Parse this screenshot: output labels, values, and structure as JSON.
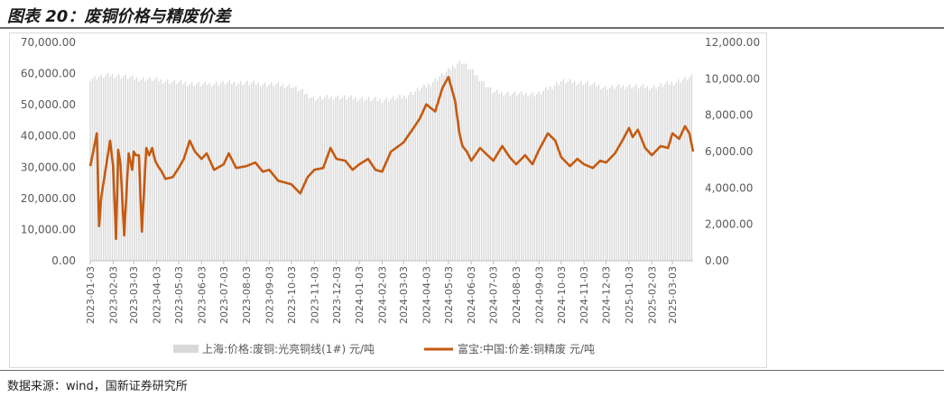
{
  "title": "图表 20：废铜价格与精废价差",
  "source": "数据来源：wind，国新证券研究所",
  "chart_data": {
    "type": "bar",
    "x_tick_labels": [
      "2023-01-03",
      "2023-02-03",
      "2023-03-03",
      "2023-04-03",
      "2023-05-03",
      "2023-06-03",
      "2023-07-03",
      "2023-08-03",
      "2023-09-03",
      "2023-10-03",
      "2023-11-03",
      "2023-12-03",
      "2024-01-03",
      "2024-02-03",
      "2024-03-03",
      "2024-04-03",
      "2024-05-03",
      "2024-06-03",
      "2024-07-03",
      "2024-08-03",
      "2024-09-03",
      "2024-10-03",
      "2024-11-03",
      "2024-12-03",
      "2025-01-03",
      "2025-02-03",
      "2025-03-03"
    ],
    "y_left_ticks": [
      "0.00",
      "10,000.00",
      "20,000.00",
      "30,000.00",
      "40,000.00",
      "50,000.00",
      "60,000.00",
      "70,000.00"
    ],
    "y_right_ticks": [
      "0.00",
      "2,000.00",
      "4,000.00",
      "6,000.00",
      "8,000.00",
      "10,000.00",
      "12,000.00"
    ],
    "ylim_left": [
      0,
      70000
    ],
    "ylim_right": [
      0,
      12000
    ],
    "grid": false,
    "legend_position": "bottom",
    "series": [
      {
        "name": "上海:价格:废铜:光亮铜线(1#) 元/吨",
        "axis": "left",
        "type": "bar",
        "color": "#d9d9d9",
        "x": [
          "2023-01-03",
          "2023-02-03",
          "2023-03-03",
          "2023-04-03",
          "2023-05-03",
          "2023-06-03",
          "2023-07-03",
          "2023-08-03",
          "2023-09-03",
          "2023-10-03",
          "2023-11-03",
          "2023-12-03",
          "2024-01-03",
          "2024-02-03",
          "2024-03-03",
          "2024-04-03",
          "2024-05-03",
          "2024-05-20",
          "2024-06-03",
          "2024-07-03",
          "2024-08-03",
          "2024-09-03",
          "2024-10-03",
          "2024-11-03",
          "2024-12-03",
          "2025-01-03",
          "2025-02-03",
          "2025-03-03",
          "2025-03-31"
        ],
        "values": [
          58500,
          59500,
          58500,
          58000,
          57000,
          56500,
          57000,
          57000,
          56500,
          56000,
          52000,
          52500,
          52000,
          51500,
          52500,
          56000,
          61000,
          64000,
          61000,
          54000,
          53500,
          53500,
          57500,
          57000,
          55500,
          56000,
          55500,
          57000,
          59000
        ]
      },
      {
        "name": "富宝:中国:价差:铜精废 元/吨",
        "axis": "right",
        "type": "line",
        "color": "#c55a11",
        "x": [
          "2023-01-03",
          "2023-01-08",
          "2023-01-12",
          "2023-01-15",
          "2023-01-18",
          "2023-01-30",
          "2023-02-03",
          "2023-02-07",
          "2023-02-10",
          "2023-02-13",
          "2023-02-18",
          "2023-02-24",
          "2023-03-01",
          "2023-03-03",
          "2023-03-06",
          "2023-03-10",
          "2023-03-14",
          "2023-03-20",
          "2023-03-24",
          "2023-03-28",
          "2023-04-01",
          "2023-04-05",
          "2023-04-10",
          "2023-04-15",
          "2023-04-25",
          "2023-05-03",
          "2023-05-10",
          "2023-05-18",
          "2023-05-25",
          "2023-06-03",
          "2023-06-10",
          "2023-06-20",
          "2023-07-03",
          "2023-07-10",
          "2023-07-20",
          "2023-08-03",
          "2023-08-15",
          "2023-08-25",
          "2023-09-03",
          "2023-09-15",
          "2023-10-03",
          "2023-10-15",
          "2023-10-25",
          "2023-11-03",
          "2023-11-15",
          "2023-11-25",
          "2023-12-03",
          "2023-12-15",
          "2023-12-25",
          "2024-01-03",
          "2024-01-15",
          "2024-01-25",
          "2024-02-03",
          "2024-02-15",
          "2024-03-03",
          "2024-03-15",
          "2024-03-25",
          "2024-04-03",
          "2024-04-15",
          "2024-04-25",
          "2024-05-03",
          "2024-05-12",
          "2024-05-18",
          "2024-05-22",
          "2024-05-28",
          "2024-06-03",
          "2024-06-15",
          "2024-06-25",
          "2024-07-03",
          "2024-07-15",
          "2024-07-25",
          "2024-08-03",
          "2024-08-15",
          "2024-08-25",
          "2024-09-03",
          "2024-09-15",
          "2024-09-25",
          "2024-10-03",
          "2024-10-15",
          "2024-10-25",
          "2024-11-03",
          "2024-11-15",
          "2024-11-25",
          "2024-12-03",
          "2024-12-15",
          "2024-12-25",
          "2025-01-03",
          "2025-01-08",
          "2025-01-15",
          "2025-01-25",
          "2025-02-03",
          "2025-02-15",
          "2025-02-25",
          "2025-03-03",
          "2025-03-12",
          "2025-03-20",
          "2025-03-26",
          "2025-03-31"
        ],
        "values": [
          5200,
          6200,
          7000,
          1900,
          3500,
          6600,
          5200,
          1200,
          6100,
          5300,
          1400,
          5900,
          5000,
          6000,
          5800,
          5800,
          1600,
          6200,
          5800,
          6200,
          5500,
          5200,
          4900,
          4500,
          4600,
          5100,
          5600,
          6600,
          6000,
          5600,
          5900,
          5000,
          5300,
          5900,
          5100,
          5200,
          5400,
          4900,
          5000,
          4400,
          4200,
          3700,
          4600,
          5000,
          5100,
          6200,
          5600,
          5500,
          5000,
          5300,
          5600,
          5000,
          4900,
          6000,
          6500,
          7200,
          7800,
          8600,
          8200,
          9500,
          10100,
          8800,
          7000,
          6300,
          6000,
          5500,
          6200,
          5800,
          5500,
          6300,
          5700,
          5300,
          5800,
          5300,
          6100,
          7000,
          6600,
          5700,
          5200,
          5600,
          5300,
          5100,
          5500,
          5400,
          5900,
          6600,
          7300,
          6800,
          7200,
          6200,
          5800,
          6300,
          6200,
          7000,
          6700,
          7400,
          7000,
          6000
        ]
      }
    ]
  }
}
